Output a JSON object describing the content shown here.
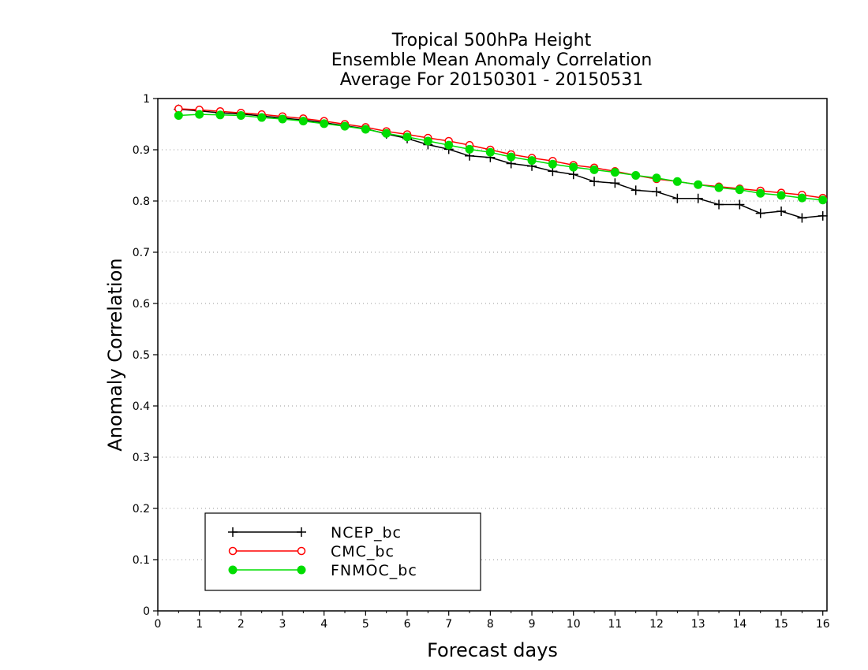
{
  "chart_data": {
    "type": "line",
    "title": [
      "Tropical 500hPa Height",
      "Ensemble Mean Anomaly Correlation",
      "Average For 20150301 - 20150531"
    ],
    "xlabel": "Forecast days",
    "ylabel": "Anomaly Correlation",
    "xlim": [
      0,
      16.1
    ],
    "ylim": [
      0,
      1
    ],
    "xticks": [
      "0",
      "1",
      "2",
      "3",
      "4",
      "5",
      "6",
      "7",
      "8",
      "9",
      "10",
      "11",
      "12",
      "13",
      "14",
      "15",
      "16"
    ],
    "yticks": [
      "0",
      "0.1",
      "0.2",
      "0.3",
      "0.4",
      "0.5",
      "0.6",
      "0.7",
      "0.8",
      "0.9",
      "1"
    ],
    "grid": "horizontal dotted",
    "legend_position": "bottom-left",
    "x": [
      0.5,
      1,
      1.5,
      2,
      2.5,
      3,
      3.5,
      4,
      4.5,
      5,
      5.5,
      6,
      6.5,
      7,
      7.5,
      8,
      8.5,
      9,
      9.5,
      10,
      10.5,
      11,
      11.5,
      12,
      12.5,
      13,
      13.5,
      14,
      14.5,
      15,
      15.5,
      16
    ],
    "series": [
      {
        "name": "NCEP_bc",
        "color": "#000000",
        "marker": "plus",
        "values": [
          0.979,
          0.976,
          0.972,
          0.97,
          0.966,
          0.962,
          0.958,
          0.953,
          0.947,
          0.941,
          0.931,
          0.922,
          0.91,
          0.901,
          0.888,
          0.885,
          0.873,
          0.868,
          0.858,
          0.852,
          0.838,
          0.835,
          0.821,
          0.818,
          0.805,
          0.805,
          0.793,
          0.793,
          0.776,
          0.78,
          0.767,
          0.771
        ]
      },
      {
        "name": "CMC_bc",
        "color": "#ff0000",
        "marker": "open-circle",
        "values": [
          0.98,
          0.978,
          0.975,
          0.972,
          0.969,
          0.965,
          0.961,
          0.956,
          0.95,
          0.944,
          0.936,
          0.93,
          0.923,
          0.917,
          0.909,
          0.9,
          0.891,
          0.884,
          0.878,
          0.87,
          0.865,
          0.858,
          0.85,
          0.843,
          0.838,
          0.832,
          0.828,
          0.824,
          0.82,
          0.816,
          0.812,
          0.806
        ]
      },
      {
        "name": "FNMOC_bc",
        "color": "#00dd00",
        "marker": "filled-circle",
        "values": [
          0.967,
          0.969,
          0.968,
          0.967,
          0.963,
          0.96,
          0.956,
          0.951,
          0.946,
          0.94,
          0.932,
          0.925,
          0.917,
          0.909,
          0.901,
          0.895,
          0.886,
          0.879,
          0.872,
          0.866,
          0.861,
          0.856,
          0.85,
          0.845,
          0.838,
          0.832,
          0.826,
          0.822,
          0.815,
          0.811,
          0.806,
          0.802
        ]
      }
    ]
  }
}
